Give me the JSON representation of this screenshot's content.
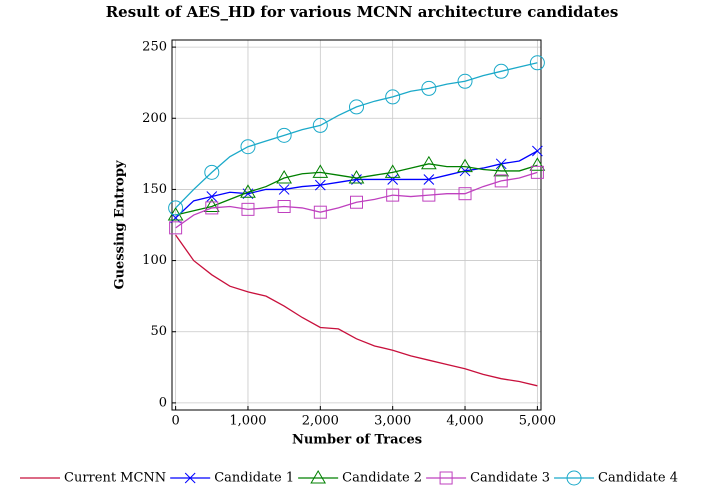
{
  "chart_data": {
    "type": "line",
    "title": "Result of AES_HD for various MCNN architecture candidates",
    "x_label": "Number of Traces",
    "y_label": "Guessing Entropy",
    "x": [
      0,
      250,
      500,
      750,
      1000,
      1250,
      1500,
      1750,
      2000,
      2250,
      2500,
      2750,
      3000,
      3250,
      3500,
      3750,
      4000,
      4250,
      4500,
      4750,
      5000
    ],
    "series": [
      {
        "name": "Current MCNN",
        "color": "#c8103c",
        "marker": "none",
        "values": [
          118,
          100,
          90,
          82,
          78,
          75,
          68,
          60,
          53,
          52,
          45,
          40,
          37,
          33,
          30,
          27,
          24,
          20,
          17,
          15,
          12
        ]
      },
      {
        "name": "Candidate 1",
        "color": "#0000ff",
        "marker": "x",
        "values": [
          130,
          142,
          145,
          148,
          147,
          150,
          150,
          152,
          153,
          155,
          157,
          157,
          157,
          157,
          157,
          160,
          163,
          165,
          168,
          170,
          177
        ]
      },
      {
        "name": "Candidate 2",
        "color": "#008000",
        "marker": "triangle",
        "values": [
          132,
          135,
          138,
          143,
          148,
          152,
          158,
          161,
          162,
          160,
          158,
          160,
          162,
          165,
          168,
          166,
          166,
          164,
          163,
          163,
          167
        ]
      },
      {
        "name": "Candidate 3",
        "color": "#bf40bf",
        "marker": "square",
        "values": [
          123,
          132,
          137,
          138,
          136,
          137,
          138,
          137,
          134,
          137,
          141,
          143,
          146,
          145,
          146,
          147,
          147,
          152,
          156,
          158,
          162
        ]
      },
      {
        "name": "Candidate 4",
        "color": "#1ba9c9",
        "marker": "circle",
        "values": [
          137,
          150,
          162,
          173,
          180,
          184,
          188,
          192,
          195,
          202,
          208,
          212,
          215,
          219,
          221,
          224,
          226,
          230,
          233,
          236,
          239
        ]
      }
    ],
    "xlim": [
      -50,
      5050
    ],
    "ylim": [
      -5,
      255
    ],
    "xticks": [
      0,
      {
        "value": 1000,
        "label": "1,000"
      },
      {
        "value": 2000,
        "label": "2,000"
      },
      {
        "value": 3000,
        "label": "3,000"
      },
      {
        "value": 4000,
        "label": "4,000"
      },
      {
        "value": 5000,
        "label": "5,000"
      }
    ],
    "yticks": [
      0,
      50,
      100,
      150,
      200,
      250
    ],
    "grid": true,
    "legend": "bottom"
  }
}
